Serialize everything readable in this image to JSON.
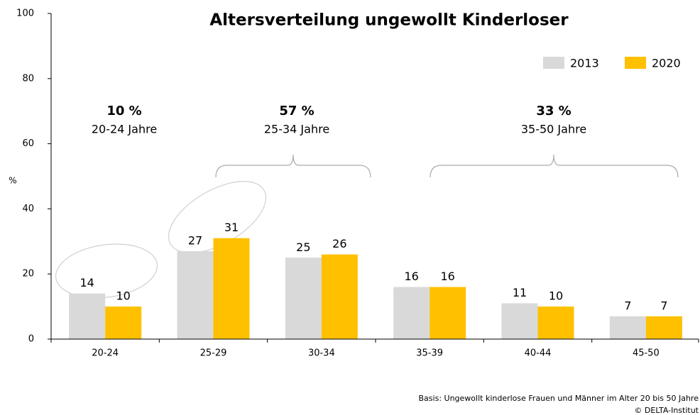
{
  "chart_data": {
    "type": "bar",
    "title": "Altersverteilung ungewollt Kinderloser",
    "y_label": "%",
    "categories": [
      "20-24",
      "25-29",
      "30-34",
      "35-39",
      "40-44",
      "45-50"
    ],
    "series": [
      {
        "name": "2013",
        "color": "#d9d9d9",
        "values": [
          14,
          27,
          25,
          16,
          11,
          7
        ]
      },
      {
        "name": "2020",
        "color": "#ffc000",
        "values": [
          10,
          31,
          26,
          16,
          10,
          7
        ]
      }
    ],
    "ylim": [
      0,
      100
    ],
    "yticks": [
      0,
      20,
      40,
      60,
      80,
      100
    ],
    "grid": false,
    "legend": "top-right",
    "annotations": [
      {
        "text": "10 %",
        "subtext": "20-24 Jahre"
      },
      {
        "text": "57 %",
        "subtext": "25-34 Jahre"
      },
      {
        "text": "33 %",
        "subtext": "35-50 Jahre"
      }
    ],
    "footnotes": [
      "Basis: Ungewollt kinderlose Frauen und Männer im Alter 20 bis 50 Jahre",
      "© DELTA-Institut"
    ]
  }
}
